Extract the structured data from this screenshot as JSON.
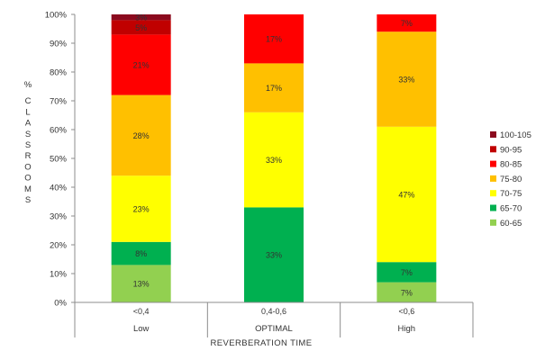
{
  "chart_data": {
    "type": "bar",
    "stacked": true,
    "percent_scale": true,
    "categories": [
      "<0,4",
      "0,4-0,6",
      "<0,6"
    ],
    "category_groups": [
      "Low",
      "OPTIMAL",
      "High"
    ],
    "xlabel": "REVERBERATION TIME",
    "ylabel": "% CLASSROOMS",
    "ylim": [
      0,
      100
    ],
    "yticks": [
      "0%",
      "10%",
      "20%",
      "30%",
      "40%",
      "50%",
      "60%",
      "70%",
      "80%",
      "90%",
      "100%"
    ],
    "grid": false,
    "legend_position": "right",
    "series": [
      {
        "name": "60-65",
        "color": "#92d050",
        "values": [
          13,
          0,
          7
        ],
        "labels": [
          "13%",
          "",
          "7%"
        ]
      },
      {
        "name": "65-70",
        "color": "#00b050",
        "values": [
          8,
          33,
          7
        ],
        "labels": [
          "8%",
          "33%",
          "7%"
        ]
      },
      {
        "name": "70-75",
        "color": "#ffff00",
        "values": [
          23,
          33,
          47
        ],
        "labels": [
          "23%",
          "33%",
          "47%"
        ]
      },
      {
        "name": "75-80",
        "color": "#ffc000",
        "values": [
          28,
          17,
          33
        ],
        "labels": [
          "28%",
          "17%",
          "33%"
        ]
      },
      {
        "name": "80-85",
        "color": "#ff0000",
        "values": [
          21,
          17,
          7
        ],
        "labels": [
          "21%",
          "17%",
          "7%"
        ]
      },
      {
        "name": "90-95",
        "color": "#c00000",
        "values": [
          5,
          0,
          0
        ],
        "labels": [
          "5%",
          "",
          ""
        ]
      },
      {
        "name": "100-105",
        "color": "#8b0a1e",
        "values": [
          3,
          0,
          0
        ],
        "labels": [
          "3%",
          "",
          ""
        ]
      }
    ]
  }
}
